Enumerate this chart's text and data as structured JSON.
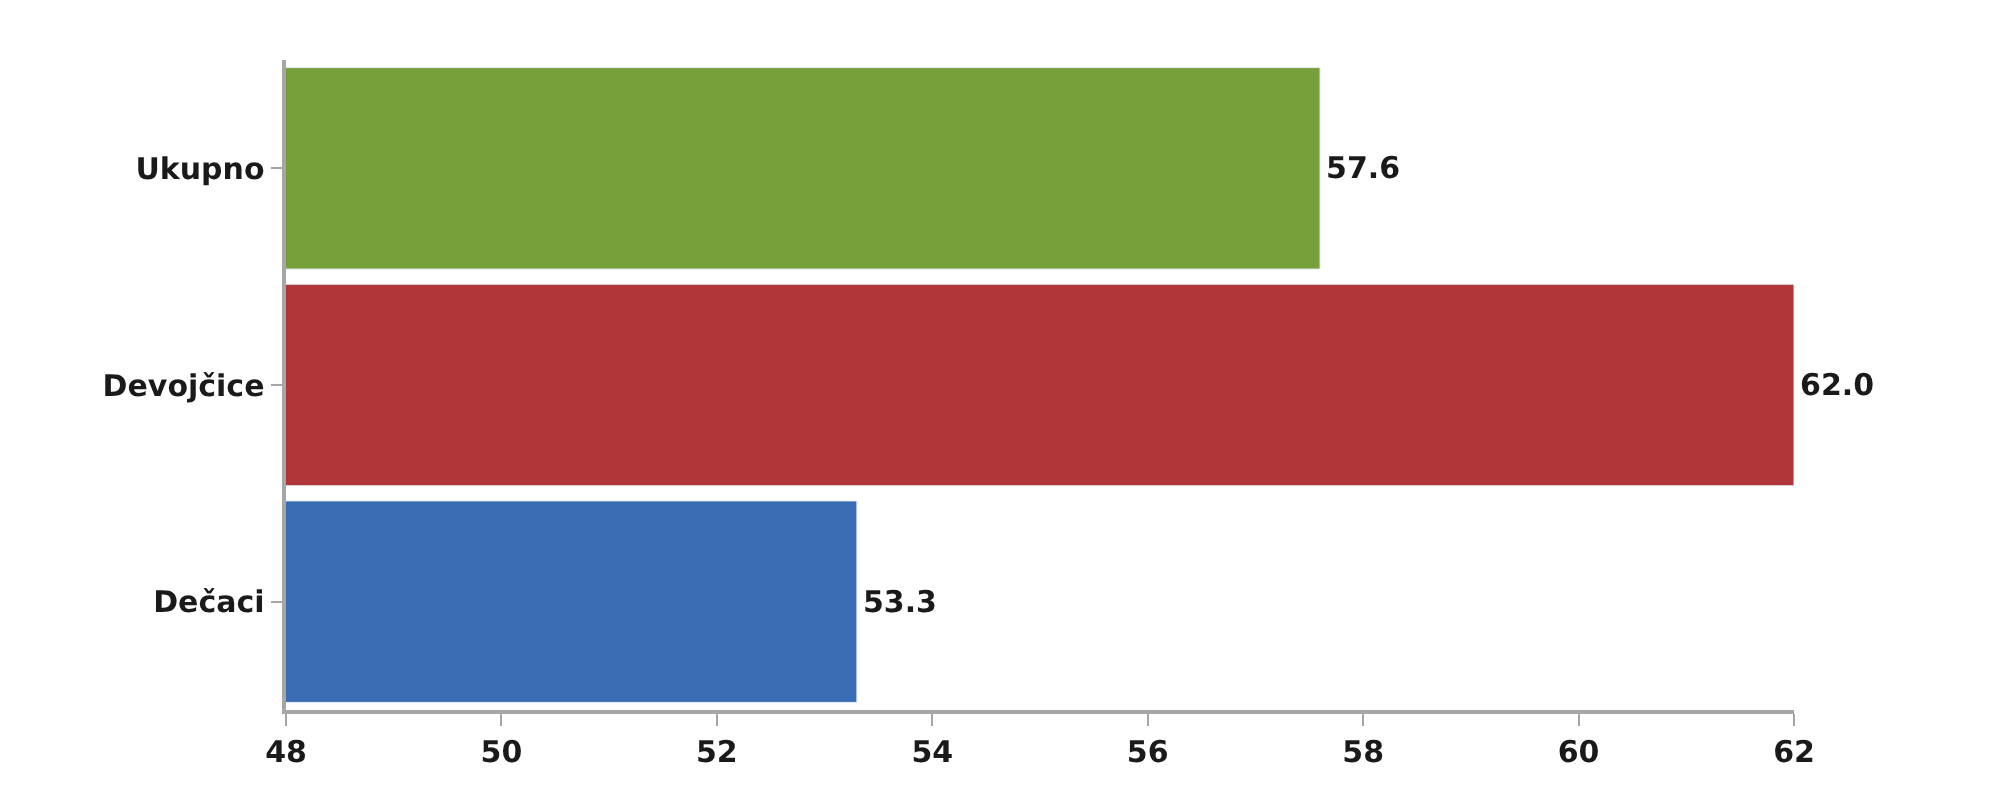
{
  "chart_data": {
    "type": "bar",
    "orientation": "horizontal",
    "categories": [
      "Ukupno",
      "Devojčice",
      "Dečaci"
    ],
    "values": [
      57.6,
      62.0,
      53.3
    ],
    "colors": [
      "#77a03a",
      "#b0363a",
      "#3a6db3"
    ],
    "value_labels": [
      "57.6",
      "62.0",
      "53.3"
    ],
    "xlim": [
      48,
      62
    ],
    "xticks": [
      48,
      50,
      52,
      54,
      56,
      58,
      60,
      62
    ]
  }
}
